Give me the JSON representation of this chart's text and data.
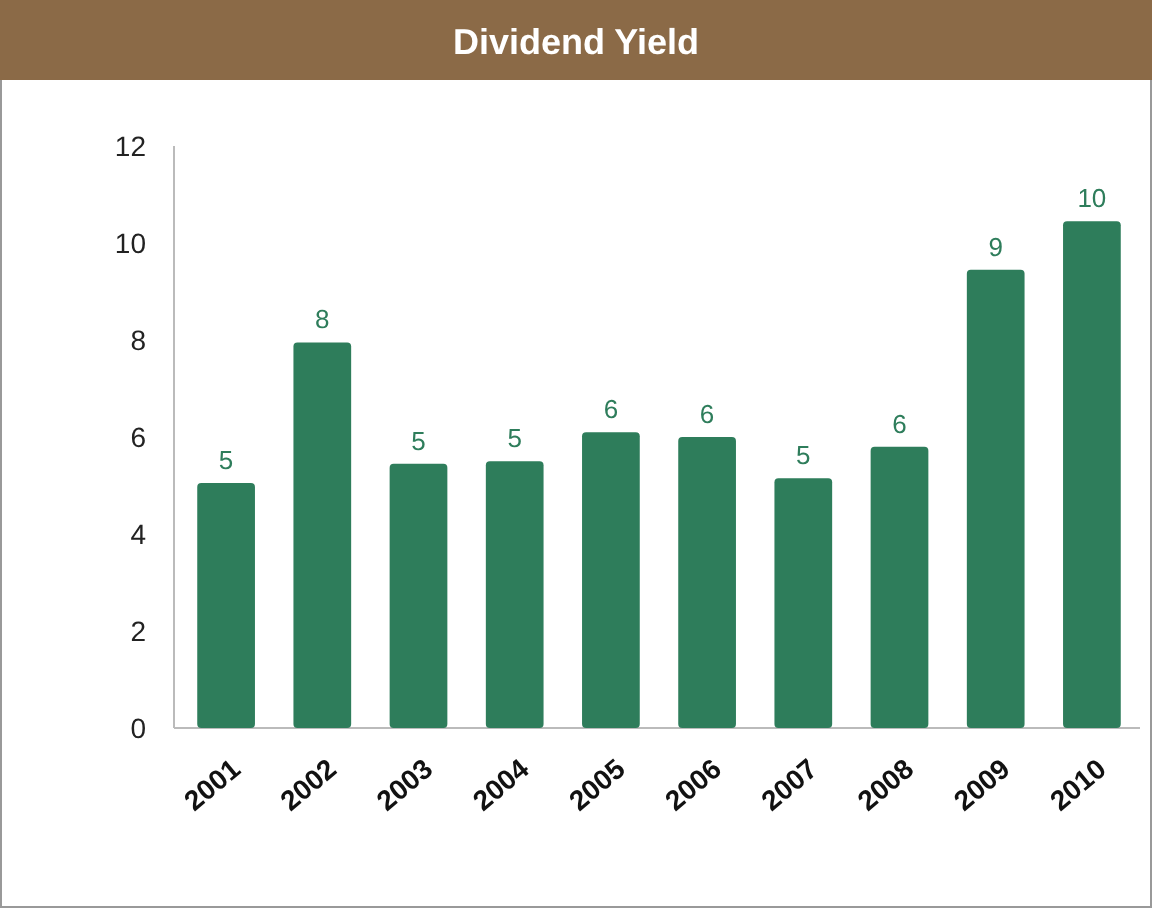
{
  "chart_data": {
    "type": "bar",
    "title": "Dividend Yield",
    "categories": [
      "2001",
      "2002",
      "2003",
      "2004",
      "2005",
      "2006",
      "2007",
      "2008",
      "2009",
      "2010"
    ],
    "values": [
      5.05,
      7.95,
      5.45,
      5.5,
      6.1,
      6.0,
      5.15,
      5.8,
      9.45,
      10.45
    ],
    "value_labels": [
      "5",
      "8",
      "5",
      "5",
      "6",
      "6",
      "5",
      "6",
      "9",
      "10"
    ],
    "color": "#2e7d5b",
    "ylim": [
      0,
      12
    ],
    "yticks": [
      0,
      2,
      4,
      6,
      8,
      10,
      12
    ],
    "grid": false
  }
}
